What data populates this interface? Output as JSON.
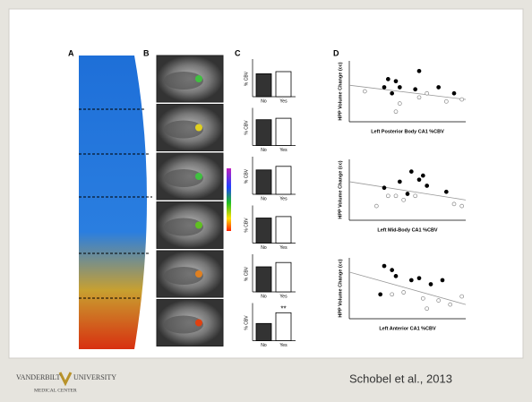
{
  "figure": {
    "panel_labels": [
      "A",
      "B",
      "C",
      "D"
    ],
    "bars": {
      "y_label": "% CBV",
      "categories": [
        "No",
        "Yes"
      ],
      "significance": "**",
      "ylim": [
        0,
        2.5
      ],
      "panels": [
        {
          "values": [
            1.6,
            1.75
          ]
        },
        {
          "values": [
            1.8,
            1.9
          ]
        },
        {
          "values": [
            1.7,
            1.95
          ]
        },
        {
          "values": [
            1.75,
            1.85
          ]
        },
        {
          "values": [
            1.75,
            2.05
          ]
        },
        {
          "values": [
            1.2,
            1.95
          ]
        }
      ]
    },
    "scatter": {
      "y_label": "HPP Volume Change (cc)",
      "xlim": [
        -1.5,
        1.5
      ],
      "ylim": [
        -1.5,
        1.5
      ],
      "panels": [
        {
          "x_label": "Left Posterior Body CA1 %CBV",
          "fit": [
            0.3,
            -0.4
          ],
          "filled": {
            "x": [
              -0.5,
              -0.3,
              0.3,
              -0.6,
              -0.2,
              0.2,
              0.8,
              1.2,
              -0.4
            ],
            "y": [
              0.6,
              0.5,
              1.0,
              0.2,
              0.2,
              0.1,
              0.2,
              -0.1,
              -0.1
            ]
          },
          "open": {
            "x": [
              -1.1,
              -0.2,
              0.3,
              0.5,
              1.0,
              1.4,
              -0.3
            ],
            "y": [
              0,
              -0.6,
              -0.3,
              -0.1,
              -0.5,
              -0.4,
              -1.0
            ]
          }
        },
        {
          "x_label": "Left Mid-Body CA1 %CBV",
          "fit": [
            0.4,
            -0.5
          ],
          "filled": {
            "x": [
              0.1,
              0.4,
              -0.2,
              0.3,
              0.5,
              -0.6,
              1.0,
              0.0
            ],
            "y": [
              0.9,
              0.7,
              0.4,
              0.5,
              0.2,
              0.1,
              -0.1,
              -0.2
            ]
          },
          "open": {
            "x": [
              -0.8,
              -0.3,
              -0.1,
              0.2,
              1.2,
              1.4,
              -0.5
            ],
            "y": [
              -0.8,
              -0.3,
              -0.5,
              -0.3,
              -0.7,
              -0.8,
              -0.3
            ]
          }
        },
        {
          "x_label": "Left Anterior CA1 %CBV",
          "fit": [
            0.8,
            -0.8
          ],
          "filled": {
            "x": [
              -0.6,
              -0.4,
              -0.3,
              0.3,
              0.6,
              0.9,
              -0.7,
              0.1
            ],
            "y": [
              1.1,
              0.9,
              0.6,
              0.5,
              0.2,
              0.4,
              -0.3,
              0.4
            ]
          },
          "open": {
            "x": [
              -0.4,
              -0.1,
              0.4,
              0.8,
              1.1,
              1.4,
              0.5
            ],
            "y": [
              -0.3,
              -0.2,
              -0.5,
              -0.6,
              -0.8,
              -0.4,
              -1.0
            ]
          }
        }
      ]
    }
  },
  "footer": {
    "logo_left": "VANDERBILT",
    "logo_right": "UNIVERSITY",
    "logo_sub": "MEDICAL CENTER",
    "citation": "Schobel et al., 2013"
  }
}
